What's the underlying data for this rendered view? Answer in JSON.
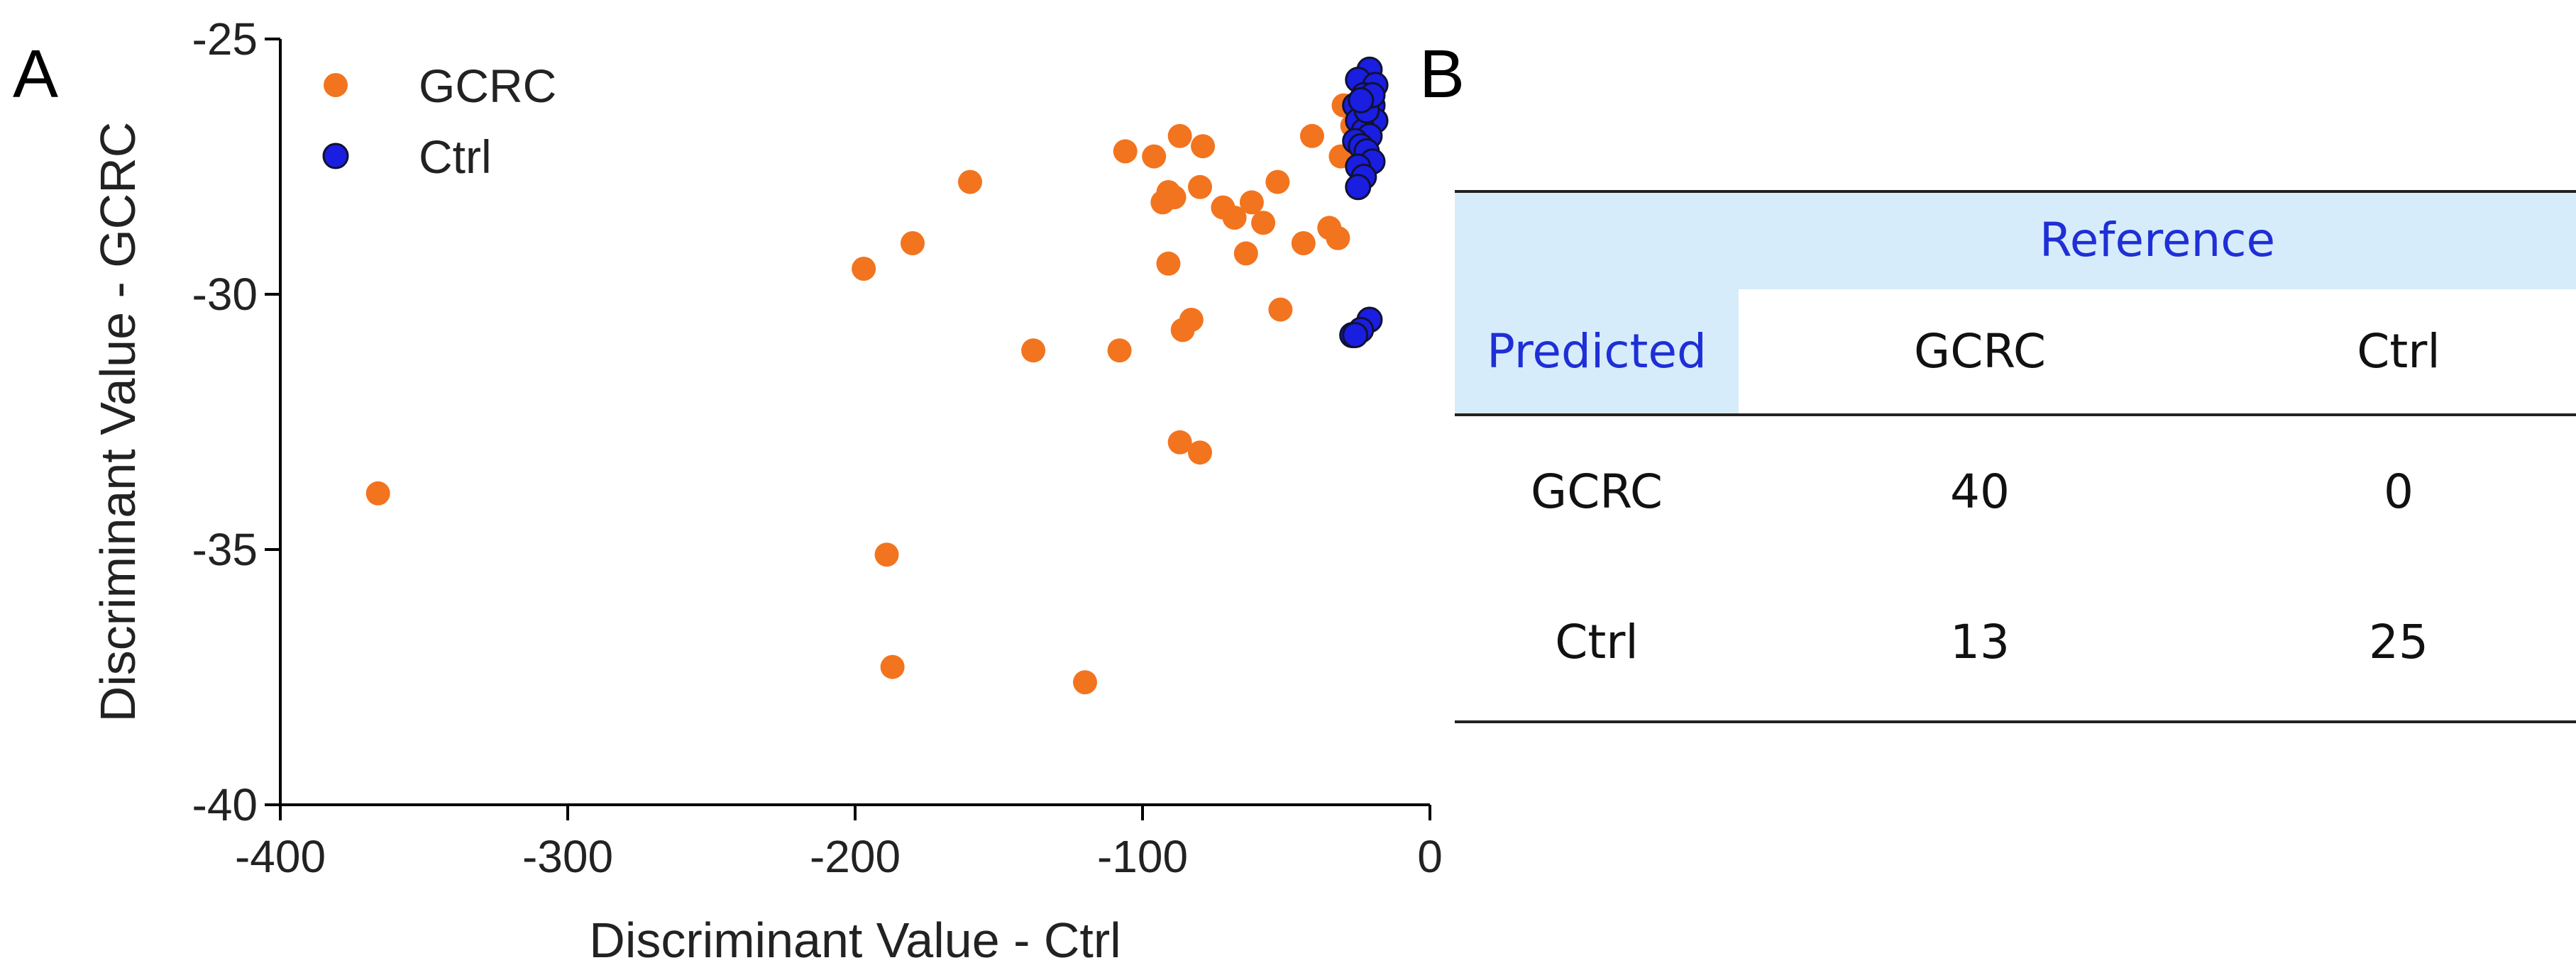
{
  "panel_labels": {
    "a": "A",
    "b": "B"
  },
  "colors": {
    "gcrc": "#f2741f",
    "ctrl": "#1a1ee0",
    "ctrl_edge": "#111133",
    "table_header": "#d6ecfb",
    "header_text": "#1f2fd6"
  },
  "chart_data": {
    "type": "scatter",
    "title": "",
    "xlabel": "Discriminant Value - Ctrl",
    "ylabel": "Discriminant Value - GCRC",
    "xlim": [
      -400,
      0
    ],
    "ylim": [
      -40,
      -25
    ],
    "xticks": [
      -400,
      -300,
      -200,
      -100,
      0
    ],
    "yticks": [
      -40,
      -35,
      -30,
      -25
    ],
    "legend": {
      "position": "top-left"
    },
    "series": [
      {
        "name": "GCRC",
        "color": "#f2741f",
        "points": [
          [
            -366,
            -33.9
          ],
          [
            -197,
            -29.5
          ],
          [
            -180,
            -29.0
          ],
          [
            -160,
            -27.8
          ],
          [
            -189,
            -35.1
          ],
          [
            -187,
            -37.3
          ],
          [
            -138,
            -31.1
          ],
          [
            -120,
            -37.6
          ],
          [
            -108,
            -31.1
          ],
          [
            -106,
            -27.2
          ],
          [
            -96,
            -27.3
          ],
          [
            -93,
            -28.2
          ],
          [
            -91,
            -28.0
          ],
          [
            -89,
            -28.1
          ],
          [
            -91,
            -29.4
          ],
          [
            -87,
            -26.9
          ],
          [
            -83,
            -30.5
          ],
          [
            -80,
            -27.9
          ],
          [
            -79,
            -27.1
          ],
          [
            -86,
            -30.7
          ],
          [
            -87,
            -32.9
          ],
          [
            -80,
            -33.1
          ],
          [
            -72,
            -28.3
          ],
          [
            -68,
            -28.5
          ],
          [
            -64,
            -29.2
          ],
          [
            -62,
            -28.2
          ],
          [
            -58,
            -28.6
          ],
          [
            -53,
            -27.8
          ],
          [
            -52,
            -30.3
          ],
          [
            -44,
            -29.0
          ],
          [
            -41,
            -26.9
          ],
          [
            -35,
            -28.7
          ],
          [
            -32,
            -28.9
          ],
          [
            -31,
            -27.3
          ],
          [
            -30,
            -26.3
          ],
          [
            -27,
            -26.7
          ],
          [
            -25,
            -27.5
          ],
          [
            -24,
            -26.5
          ],
          [
            -22,
            -26.0
          ],
          [
            -26,
            -27.1
          ]
        ]
      },
      {
        "name": "Ctrl",
        "color": "#1a1ee0",
        "points": [
          [
            -21,
            -25.6
          ],
          [
            -25,
            -25.8
          ],
          [
            -19,
            -25.9
          ],
          [
            -23,
            -26.1
          ],
          [
            -20,
            -26.3
          ],
          [
            -26,
            -26.3
          ],
          [
            -22,
            -26.5
          ],
          [
            -19,
            -26.6
          ],
          [
            -25,
            -26.6
          ],
          [
            -23,
            -26.8
          ],
          [
            -21,
            -26.9
          ],
          [
            -26,
            -27.0
          ],
          [
            -24,
            -27.1
          ],
          [
            -22,
            -27.2
          ],
          [
            -20,
            -27.4
          ],
          [
            -25,
            -27.5
          ],
          [
            -23,
            -27.7
          ],
          [
            -25,
            -27.9
          ],
          [
            -22,
            -26.4
          ],
          [
            -21,
            -30.5
          ],
          [
            -24,
            -30.7
          ],
          [
            -27,
            -30.8
          ],
          [
            -26,
            -30.8
          ],
          [
            -20,
            -26.1
          ],
          [
            -24,
            -26.2
          ]
        ]
      }
    ]
  },
  "confusion_table": {
    "reference_label": "Reference",
    "predicted_label": "Predicted",
    "columns": [
      "GCRC",
      "Ctrl"
    ],
    "rows": [
      {
        "label": "GCRC",
        "values": [
          "40",
          "0"
        ]
      },
      {
        "label": "Ctrl",
        "values": [
          "13",
          "25"
        ]
      }
    ]
  }
}
